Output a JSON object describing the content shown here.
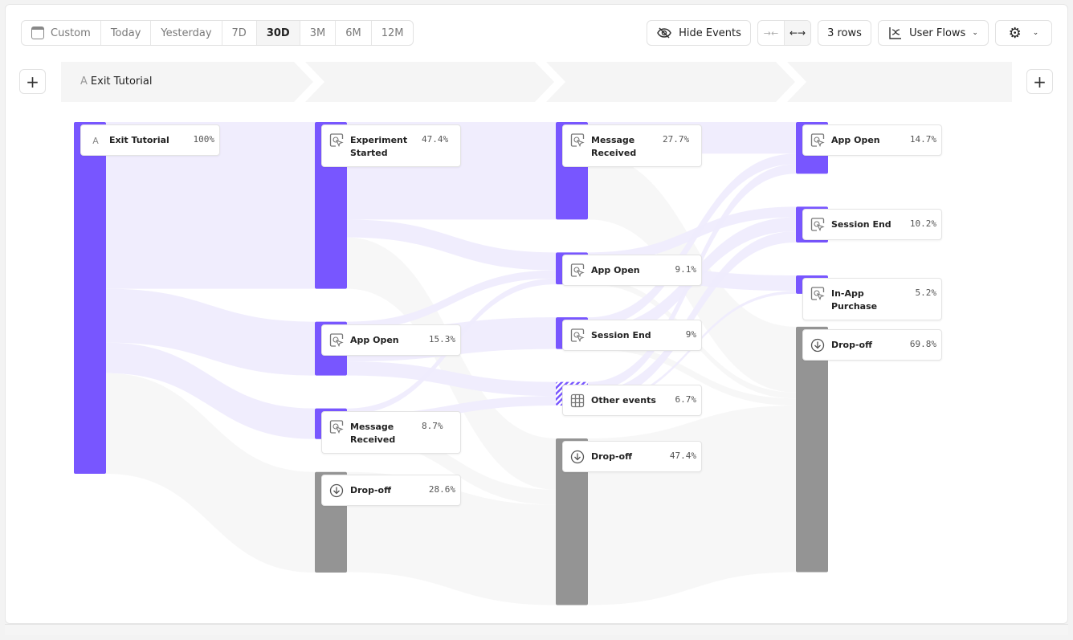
{
  "toolbar": {
    "date_ranges": [
      {
        "label": "Custom",
        "icon": "calendar-icon",
        "active": false
      },
      {
        "label": "Today",
        "active": false
      },
      {
        "label": "Yesterday",
        "active": false
      },
      {
        "label": "7D",
        "active": false
      },
      {
        "label": "30D",
        "active": true
      },
      {
        "label": "3M",
        "active": false
      },
      {
        "label": "6M",
        "active": false
      },
      {
        "label": "12M",
        "active": false
      }
    ],
    "hide_events": "Hide Events",
    "rows": "3 rows",
    "view": "User Flows"
  },
  "steps": {
    "first_prefix": "A",
    "first_label": "Exit Tutorial"
  },
  "colors": {
    "accent": "#7856ff",
    "dropoff": "#949494",
    "link": "#eeebfd",
    "droplink": "#f6f6f6"
  },
  "columns": [
    [
      {
        "id": "a",
        "label": "Exit Tutorial",
        "pct": "100%",
        "value": 100,
        "icon": "letter-a-icon"
      }
    ],
    [
      {
        "id": "b1",
        "label": "Experiment Started",
        "pct": "47.4%",
        "value": 47.4,
        "icon": "cursor-click-icon"
      },
      {
        "id": "b2",
        "label": "App Open",
        "pct": "15.3%",
        "value": 15.3,
        "icon": "cursor-click-icon"
      },
      {
        "id": "b3",
        "label": "Message Received",
        "pct": "8.7%",
        "value": 8.7,
        "icon": "cursor-click-icon"
      },
      {
        "id": "b4",
        "label": "Drop-off",
        "pct": "28.6%",
        "value": 28.6,
        "icon": "arrow-down-circle-icon",
        "drop": true
      }
    ],
    [
      {
        "id": "c1",
        "label": "Message Received",
        "pct": "27.7%",
        "value": 27.7,
        "icon": "cursor-click-icon"
      },
      {
        "id": "c2",
        "label": "App Open",
        "pct": "9.1%",
        "value": 9.1,
        "icon": "cursor-click-icon"
      },
      {
        "id": "c3",
        "label": "Session End",
        "pct": "9%",
        "value": 9,
        "icon": "cursor-click-icon"
      },
      {
        "id": "c4",
        "label": "Other events",
        "pct": "6.7%",
        "value": 6.7,
        "icon": "grid-icon",
        "other": true
      },
      {
        "id": "c5",
        "label": "Drop-off",
        "pct": "47.4%",
        "value": 47.4,
        "icon": "arrow-down-circle-icon",
        "drop": true
      }
    ],
    [
      {
        "id": "d1",
        "label": "App Open",
        "pct": "14.7%",
        "value": 14.7,
        "icon": "cursor-click-icon"
      },
      {
        "id": "d2",
        "label": "Session End",
        "pct": "10.2%",
        "value": 10.2,
        "icon": "cursor-click-icon"
      },
      {
        "id": "d3",
        "label": "In-App Purchase",
        "pct": "5.2%",
        "value": 5.2,
        "icon": "cursor-click-icon"
      },
      {
        "id": "d4",
        "label": "Drop-off",
        "pct": "69.8%",
        "value": 69.8,
        "icon": "arrow-down-circle-icon",
        "drop": true
      }
    ]
  ],
  "links": [
    [
      "a",
      "b1",
      47.4
    ],
    [
      "a",
      "b2",
      15.3
    ],
    [
      "a",
      "b3",
      8.7
    ],
    [
      "a",
      "b4",
      28.6
    ],
    [
      "b1",
      "c1",
      27.7
    ],
    [
      "b1",
      "c2",
      5.1
    ],
    [
      "b1",
      "c5",
      14.6
    ],
    [
      "b2",
      "c2",
      2.3
    ],
    [
      "b2",
      "c3",
      9.0
    ],
    [
      "b2",
      "c4",
      4.0
    ],
    [
      "b3",
      "c2",
      1.7
    ],
    [
      "b3",
      "c4",
      2.7
    ],
    [
      "b3",
      "c5",
      4.3
    ],
    [
      "b4",
      "c5",
      28.5
    ],
    [
      "c1",
      "d1",
      9.0
    ],
    [
      "c1",
      "d4",
      18.7
    ],
    [
      "c2",
      "d2",
      3.0
    ],
    [
      "c2",
      "d3",
      4.4
    ],
    [
      "c2",
      "d4",
      1.7
    ],
    [
      "c3",
      "d1",
      3.0
    ],
    [
      "c3",
      "d2",
      4.0
    ],
    [
      "c3",
      "d4",
      2.0
    ],
    [
      "c4",
      "d1",
      2.7
    ],
    [
      "c4",
      "d2",
      3.2
    ],
    [
      "c4",
      "d3",
      0.8
    ],
    [
      "c5",
      "d4",
      47.4
    ]
  ]
}
